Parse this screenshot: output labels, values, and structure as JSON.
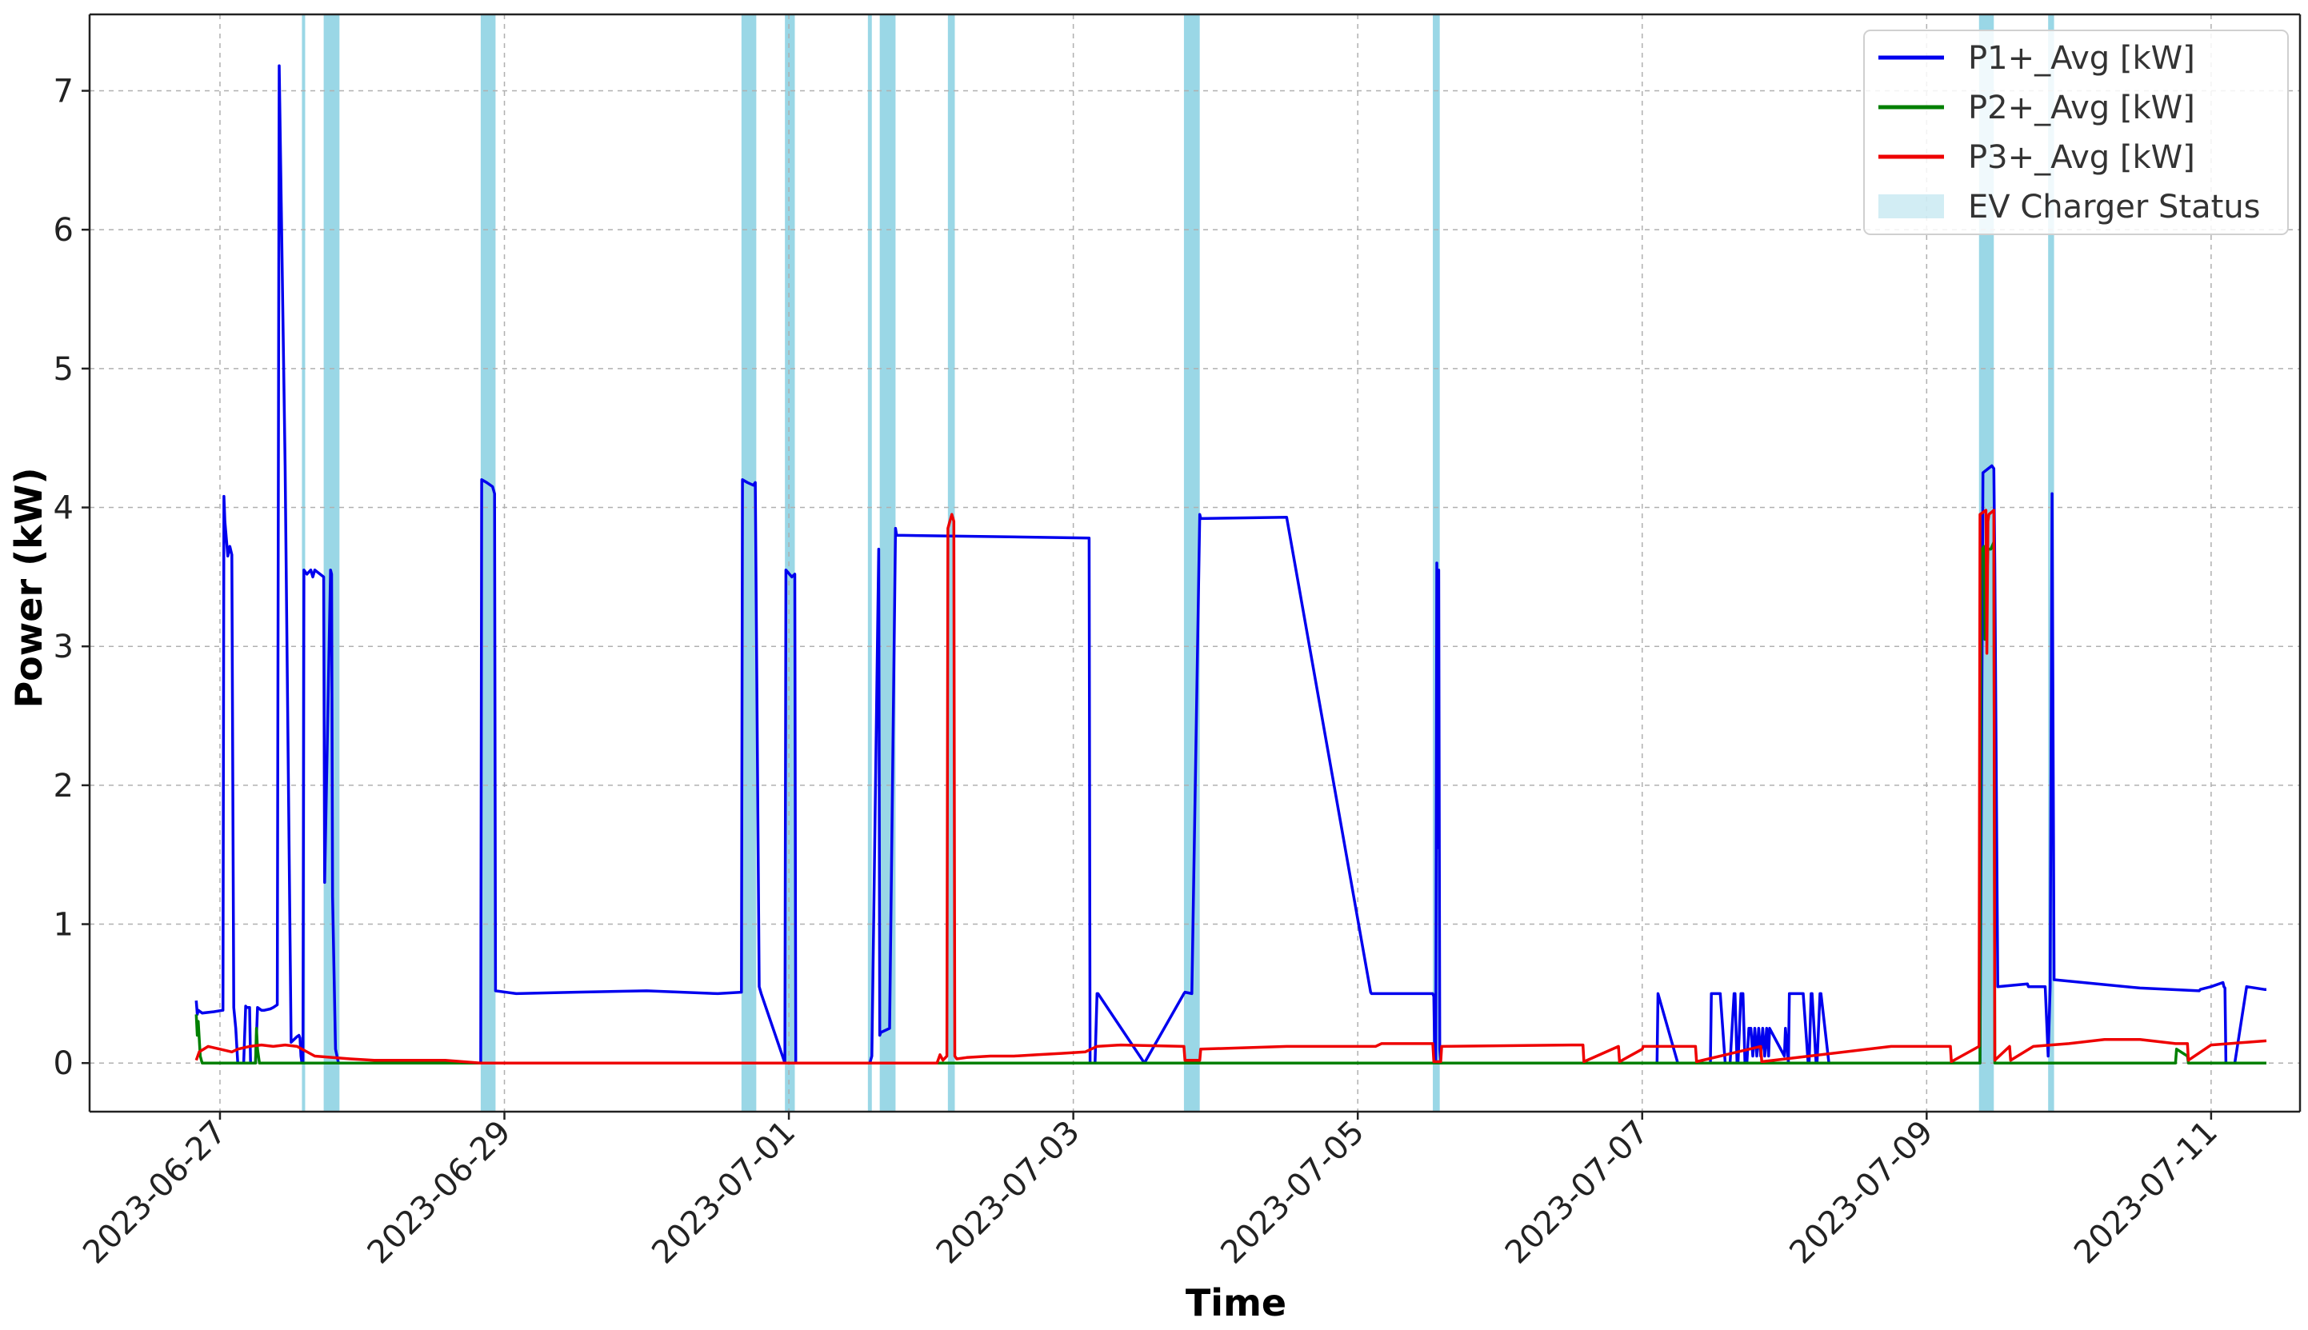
{
  "chart_data": {
    "type": "line",
    "title": "",
    "xlabel": "Time",
    "ylabel": "Power (kW)",
    "xlim": [
      "2023-06-26T02:00",
      "2023-07-11T15:00"
    ],
    "ylim": [
      -0.35,
      7.55
    ],
    "grid": true,
    "legend_placement": "top-right",
    "x_ticks": [
      "2023-06-27",
      "2023-06-29",
      "2023-07-01",
      "2023-07-03",
      "2023-07-05",
      "2023-07-07",
      "2023-07-09",
      "2023-07-11"
    ],
    "y_ticks": [
      0,
      1,
      2,
      3,
      4,
      5,
      6,
      7
    ],
    "charger_status": {
      "name": "EV Charger Status",
      "color": "#8fd3e3",
      "intervals": [
        [
          "2023-06-27T13:50",
          "2023-06-27T14:10"
        ],
        [
          "2023-06-27T17:30",
          "2023-06-27T20:10"
        ],
        [
          "2023-06-28T20:00",
          "2023-06-28T22:30"
        ],
        [
          "2023-06-30T16:00",
          "2023-06-30T18:30"
        ],
        [
          "2023-06-30T23:20",
          "2023-07-01T01:00"
        ],
        [
          "2023-07-01T13:20",
          "2023-07-01T14:00"
        ],
        [
          "2023-07-01T15:20",
          "2023-07-01T18:00"
        ],
        [
          "2023-07-02T02:50",
          "2023-07-02T04:00"
        ],
        [
          "2023-07-03T18:40",
          "2023-07-03T21:20"
        ],
        [
          "2023-07-05T12:40",
          "2023-07-05T13:50"
        ],
        [
          "2023-07-09T08:50",
          "2023-07-09T11:20"
        ],
        [
          "2023-07-09T20:30",
          "2023-07-09T21:30"
        ]
      ]
    },
    "series": [
      {
        "name": "P1+_Avg [kW]",
        "color": "#0000ee",
        "x": [
          "2023-06-26T20:00",
          "2023-06-26T20:10",
          "2023-06-26T20:20",
          "2023-06-26T21:00",
          "2023-06-26T23:00",
          "2023-06-27T00:30",
          "2023-06-27T00:40",
          "2023-06-27T00:50",
          "2023-06-27T01:20",
          "2023-06-27T01:40",
          "2023-06-27T02:00",
          "2023-06-27T02:20",
          "2023-06-27T02:40",
          "2023-06-27T03:00",
          "2023-06-27T03:20",
          "2023-06-27T03:40",
          "2023-06-27T04:00",
          "2023-06-27T04:20",
          "2023-06-27T04:30",
          "2023-06-27T04:40",
          "2023-06-27T05:00",
          "2023-06-27T05:10",
          "2023-06-27T05:30",
          "2023-06-27T06:00",
          "2023-06-27T06:20",
          "2023-06-27T07:00",
          "2023-06-27T07:30",
          "2023-06-27T08:30",
          "2023-06-27T09:00",
          "2023-06-27T09:40",
          "2023-06-27T10:00",
          "2023-06-27T11:00",
          "2023-06-27T12:00",
          "2023-06-27T13:00",
          "2023-06-27T13:20",
          "2023-06-27T13:30",
          "2023-06-27T13:40",
          "2023-06-27T13:50",
          "2023-06-27T14:00",
          "2023-06-27T14:10",
          "2023-06-27T14:40",
          "2023-06-27T15:20",
          "2023-06-27T15:40",
          "2023-06-27T16:00",
          "2023-06-27T17:30",
          "2023-06-27T17:40",
          "2023-06-27T18:40",
          "2023-06-27T18:50",
          "2023-06-27T19:00",
          "2023-06-27T19:30",
          "2023-06-27T20:00",
          "2023-06-27T20:10",
          "2023-06-27T20:20",
          "2023-06-28T20:00",
          "2023-06-28T20:10",
          "2023-06-28T21:00",
          "2023-06-28T22:00",
          "2023-06-28T22:20",
          "2023-06-28T22:30",
          "2023-06-29T02:00",
          "2023-06-29T12:00",
          "2023-06-30T00:00",
          "2023-06-30T12:00",
          "2023-06-30T16:00",
          "2023-06-30T16:10",
          "2023-06-30T17:00",
          "2023-06-30T18:00",
          "2023-06-30T18:20",
          "2023-06-30T19:00",
          "2023-06-30T19:20",
          "2023-06-30T23:20",
          "2023-06-30T23:30",
          "2023-07-01T00:30",
          "2023-07-01T01:00",
          "2023-07-01T01:10",
          "2023-07-01T13:20",
          "2023-07-01T13:30",
          "2023-07-01T13:40",
          "2023-07-01T14:00",
          "2023-07-01T15:10",
          "2023-07-01T15:20",
          "2023-07-01T15:30",
          "2023-07-01T17:00",
          "2023-07-01T18:00",
          "2023-07-01T18:10",
          "2023-07-03T02:40",
          "2023-07-03T02:50",
          "2023-07-03T03:30",
          "2023-07-03T03:40",
          "2023-07-03T04:00",
          "2023-07-03T04:10",
          "2023-07-03T12:00",
          "2023-07-03T18:40",
          "2023-07-03T18:50",
          "2023-07-03T20:00",
          "2023-07-03T21:20",
          "2023-07-03T21:30",
          "2023-07-04T12:00",
          "2023-07-05T02:10",
          "2023-07-05T02:20",
          "2023-07-05T12:40",
          "2023-07-05T12:50",
          "2023-07-05T13:00",
          "2023-07-05T13:10",
          "2023-07-05T13:20",
          "2023-07-05T13:30",
          "2023-07-05T13:40",
          "2023-07-05T13:50",
          "2023-07-05T14:00",
          "2023-07-07T00:00",
          "2023-07-07T00:10",
          "2023-07-07T02:30",
          "2023-07-07T02:40",
          "2023-07-07T06:00",
          "2023-07-07T06:10",
          "2023-07-07T11:00",
          "2023-07-07T11:10",
          "2023-07-07T11:30",
          "2023-07-07T11:40",
          "2023-07-07T13:00",
          "2023-07-07T13:10",
          "2023-07-07T14:00",
          "2023-07-07T14:10",
          "2023-07-07T14:40",
          "2023-07-07T14:50",
          "2023-07-07T15:30",
          "2023-07-07T15:40",
          "2023-07-07T16:00",
          "2023-07-07T16:10",
          "2023-07-07T16:40",
          "2023-07-07T17:00",
          "2023-07-07T17:20",
          "2023-07-07T17:40",
          "2023-07-07T18:00",
          "2023-07-07T18:20",
          "2023-07-07T18:40",
          "2023-07-07T19:00",
          "2023-07-07T19:20",
          "2023-07-07T19:40",
          "2023-07-07T20:00",
          "2023-07-07T20:20",
          "2023-07-07T20:40",
          "2023-07-07T21:00",
          "2023-07-07T21:20",
          "2023-07-07T21:30",
          "2023-07-08T00:00",
          "2023-07-08T00:10",
          "2023-07-08T00:40",
          "2023-07-08T00:50",
          "2023-07-08T02:00",
          "2023-07-08T02:10",
          "2023-07-08T03:00",
          "2023-07-08T03:10",
          "2023-07-08T04:00",
          "2023-07-08T04:10",
          "2023-07-08T04:30",
          "2023-07-08T04:40",
          "2023-07-08T05:20",
          "2023-07-08T05:30",
          "2023-07-08T06:00",
          "2023-07-08T06:10",
          "2023-07-08T07:30",
          "2023-07-08T07:40",
          "2023-07-09T08:50",
          "2023-07-09T09:00",
          "2023-07-09T09:30",
          "2023-07-09T11:00",
          "2023-07-09T11:20",
          "2023-07-09T11:30",
          "2023-07-09T12:00",
          "2023-07-09T17:00",
          "2023-07-09T17:10",
          "2023-07-09T19:30",
          "2023-07-09T20:00",
          "2023-07-09T20:30",
          "2023-07-09T20:50",
          "2023-07-09T21:10",
          "2023-07-09T21:30",
          "2023-07-10T12:00",
          "2023-07-10T22:00",
          "2023-07-10T22:10",
          "2023-07-11T00:00",
          "2023-07-11T02:00",
          "2023-07-11T02:10",
          "2023-07-11T02:20",
          "2023-07-11T02:30",
          "2023-07-11T04:00",
          "2023-07-11T06:00",
          "2023-07-11T09:00",
          "2023-07-11T09:20"
        ],
        "y": [
          0.45,
          0.35,
          0.38,
          0.36,
          0.37,
          0.38,
          4.08,
          3.9,
          3.65,
          3.72,
          3.66,
          0.4,
          0.25,
          0,
          0,
          0,
          0,
          0.41,
          0.4,
          0.4,
          0.4,
          0,
          0,
          0,
          0.4,
          0.38,
          0.38,
          0.39,
          0.4,
          0.42,
          7.18,
          4.3,
          0.15,
          0.19,
          0.2,
          0.18,
          0.05,
          0,
          0,
          3.55,
          3.52,
          3.55,
          3.5,
          3.55,
          3.5,
          1.3,
          3.55,
          3.52,
          1.2,
          0.1,
          0,
          0,
          0,
          0,
          4.2,
          4.18,
          4.15,
          4.1,
          0.52,
          0.5,
          0.51,
          0.52,
          0.5,
          0.51,
          4.2,
          4.18,
          4.16,
          4.18,
          0.55,
          0.5,
          0,
          3.55,
          3.5,
          3.52,
          0,
          0,
          0,
          0,
          0.05,
          3.7,
          0.2,
          0.22,
          0.25,
          3.85,
          3.8,
          3.78,
          0,
          0,
          0,
          0.5,
          0.5,
          0,
          0.5,
          0.51,
          0.5,
          3.95,
          3.92,
          3.93,
          0.51,
          0.5,
          0.5,
          0.48,
          0,
          0,
          3.6,
          1.55,
          3.55,
          0.1,
          0,
          0,
          0,
          0,
          0.5,
          0,
          0,
          0,
          0,
          0,
          0.5,
          0.5,
          0.5,
          0,
          0,
          0,
          0,
          0.5,
          0.5,
          0,
          0,
          0.5,
          0.5,
          0,
          0,
          0.25,
          0.25,
          0.05,
          0.25,
          0.05,
          0.25,
          0.05,
          0.25,
          0.05,
          0.25,
          0.05,
          0.25,
          0.05,
          0.25,
          0,
          0.5,
          0.5,
          0.5,
          0.5,
          0.5,
          0,
          0,
          0.5,
          0.5,
          0,
          0,
          0.5,
          0.5,
          0,
          0,
          0,
          0,
          4.25,
          4.3,
          4.28,
          3.6,
          0.55,
          0.57,
          0.55,
          0.55,
          0.55,
          0.05,
          0.55,
          4.1,
          0.6,
          0.54,
          0.52,
          0.53,
          0.55,
          0.58,
          0.55,
          0.54,
          0,
          0,
          0.55,
          0.53,
          0.53
        ],
        "_comment_y_note": null
      },
      {
        "name": "P2+_Avg [kW]",
        "color": "#008000",
        "x": [
          "2023-06-26T20:00",
          "2023-06-26T20:10",
          "2023-06-26T20:20",
          "2023-06-26T20:40",
          "2023-06-26T21:00",
          "2023-06-27T06:00",
          "2023-06-27T06:10",
          "2023-06-27T06:20",
          "2023-06-27T06:40",
          "2023-07-09T09:00",
          "2023-07-09T09:10",
          "2023-07-09T09:40",
          "2023-07-09T09:50",
          "2023-07-09T10:20",
          "2023-07-09T10:50",
          "2023-07-09T11:20",
          "2023-07-09T11:30",
          "2023-07-10T18:00",
          "2023-07-10T18:10",
          "2023-07-10T20:00",
          "2023-07-10T20:10",
          "2023-07-11T09:20"
        ],
        "y": [
          0.35,
          0.2,
          0.3,
          0.05,
          0,
          0,
          0.25,
          0.1,
          0,
          0,
          3.68,
          3.72,
          3.05,
          3.7,
          3.7,
          3.75,
          0,
          0,
          0.1,
          0.05,
          0,
          0
        ]
      },
      {
        "name": "P3+_Avg [kW]",
        "color": "#ee0000",
        "x": [
          "2023-06-26T20:00",
          "2023-06-26T20:30",
          "2023-06-26T22:00",
          "2023-06-27T00:00",
          "2023-06-27T02:00",
          "2023-06-27T03:00",
          "2023-06-27T05:00",
          "2023-06-27T07:00",
          "2023-06-27T09:00",
          "2023-06-27T11:00",
          "2023-06-27T13:00",
          "2023-06-27T16:00",
          "2023-06-27T19:00",
          "2023-06-27T22:00",
          "2023-06-28T02:00",
          "2023-06-28T08:00",
          "2023-06-28T14:00",
          "2023-06-28T20:00",
          "2023-06-28T22:00",
          "2023-07-02T01:00",
          "2023-07-02T01:30",
          "2023-07-02T02:00",
          "2023-07-02T02:40",
          "2023-07-02T02:50",
          "2023-07-02T03:10",
          "2023-07-02T03:30",
          "2023-07-02T03:50",
          "2023-07-02T04:00",
          "2023-07-02T04:20",
          "2023-07-02T06:00",
          "2023-07-02T10:00",
          "2023-07-02T14:00",
          "2023-07-02T18:00",
          "2023-07-02T22:00",
          "2023-07-03T02:00",
          "2023-07-03T03:00",
          "2023-07-03T04:00",
          "2023-07-03T08:00",
          "2023-07-03T18:40",
          "2023-07-03T18:50",
          "2023-07-03T21:20",
          "2023-07-03T21:30",
          "2023-07-04T12:00",
          "2023-07-05T03:00",
          "2023-07-05T04:00",
          "2023-07-05T12:40",
          "2023-07-05T12:50",
          "2023-07-05T14:00",
          "2023-07-05T14:10",
          "2023-07-06T12:00",
          "2023-07-06T14:00",
          "2023-07-06T14:10",
          "2023-07-06T20:00",
          "2023-07-06T20:10",
          "2023-07-07T00:00",
          "2023-07-07T00:10",
          "2023-07-07T09:00",
          "2023-07-07T09:10",
          "2023-07-07T20:00",
          "2023-07-07T20:10",
          "2023-07-08T18:00",
          "2023-07-08T20:00",
          "2023-07-09T04:00",
          "2023-07-09T04:10",
          "2023-07-09T08:50",
          "2023-07-09T09:00",
          "2023-07-09T10:00",
          "2023-07-09T10:10",
          "2023-07-09T10:20",
          "2023-07-09T10:30",
          "2023-07-09T11:20",
          "2023-07-09T11:30",
          "2023-07-09T14:00",
          "2023-07-09T14:10",
          "2023-07-09T18:00",
          "2023-07-10T00:00",
          "2023-07-10T06:00",
          "2023-07-10T12:00",
          "2023-07-10T18:00",
          "2023-07-10T20:00",
          "2023-07-10T20:10",
          "2023-07-11T00:00",
          "2023-07-11T06:00",
          "2023-07-11T09:20"
        ],
        "y": [
          0.02,
          0.08,
          0.12,
          0.1,
          0.08,
          0.1,
          0.12,
          0.13,
          0.12,
          0.13,
          0.12,
          0.05,
          0.04,
          0.03,
          0.02,
          0.02,
          0.02,
          0,
          0,
          0,
          0.06,
          0.02,
          0.05,
          3.85,
          3.9,
          3.95,
          3.9,
          0.05,
          0.03,
          0.04,
          0.05,
          0.05,
          0.06,
          0.07,
          0.08,
          0.1,
          0.12,
          0.13,
          0.12,
          0.02,
          0.02,
          0.1,
          0.12,
          0.12,
          0.14,
          0.14,
          0.01,
          0.01,
          0.12,
          0.13,
          0.13,
          0.01,
          0.12,
          0.01,
          0.1,
          0.12,
          0.12,
          0.01,
          0.12,
          0.01,
          0.12,
          0.12,
          0.12,
          0.01,
          0.12,
          3.95,
          3.98,
          2.95,
          3.9,
          3.95,
          3.98,
          0.02,
          0.12,
          0.02,
          0.12,
          0.14,
          0.17,
          0.17,
          0.14,
          0.14,
          0.02,
          0.13,
          0.15,
          0.16
        ]
      }
    ]
  }
}
